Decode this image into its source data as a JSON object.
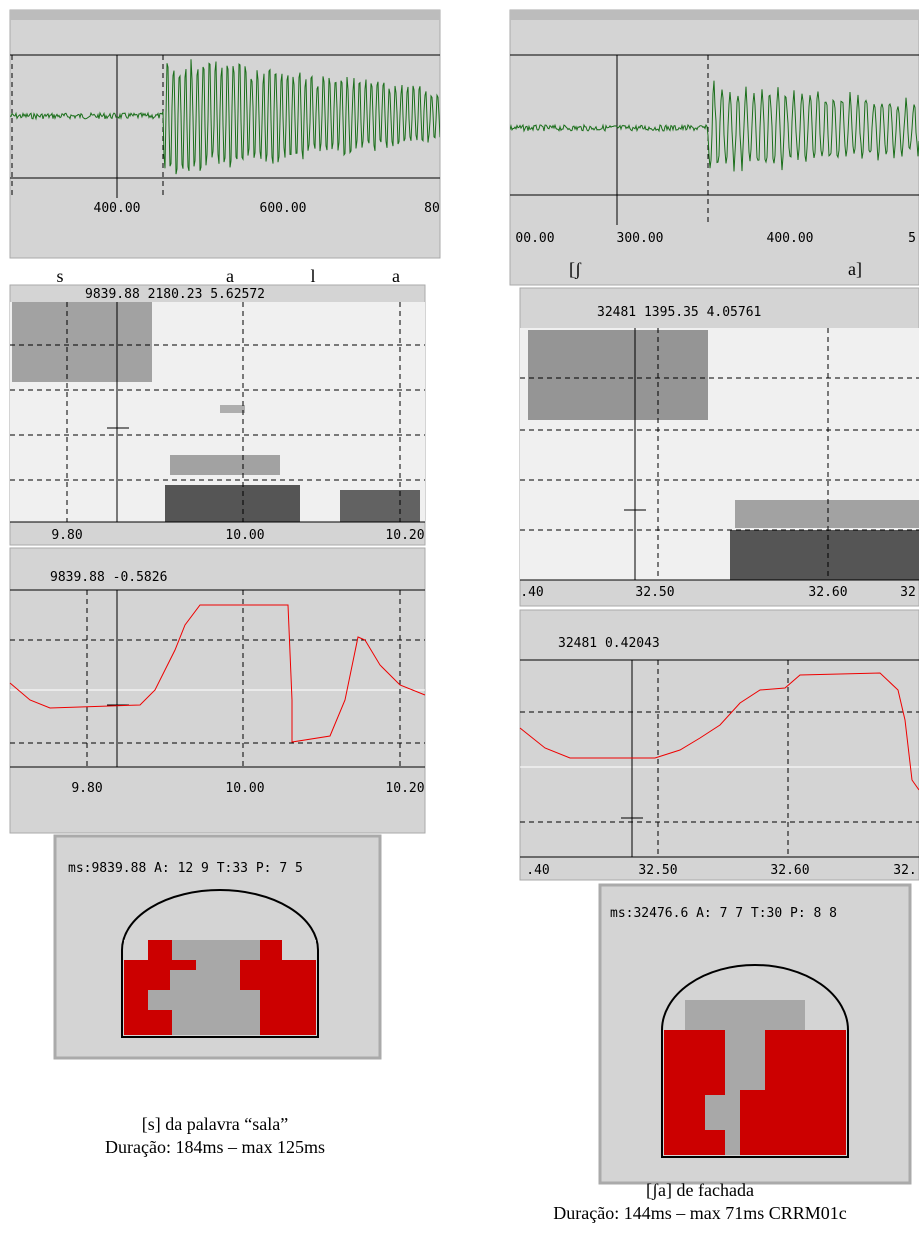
{
  "left": {
    "waveform": {
      "ticks": [
        "400.00",
        "600.00",
        "80"
      ]
    },
    "segments": [
      "s",
      "a",
      "l",
      "a"
    ],
    "spectrogram": {
      "readout": "9839.88 2180.23 5.62572",
      "ticks": [
        "9.80",
        "10.00",
        "10.20"
      ]
    },
    "pitch": {
      "readout": "9839.88  -0.5826",
      "ticks": [
        "9.80",
        "10.00",
        "10.20"
      ]
    },
    "tract": {
      "readout": "ms:9839.88 A: 12  9 T:33 P:  7  5"
    },
    "caption": [
      "[s] da palavra “sala”",
      "Duração: 184ms – max 125ms"
    ]
  },
  "right": {
    "waveform": {
      "ticks": [
        "00.00",
        "300.00",
        "400.00",
        "5"
      ]
    },
    "segments": [
      "[ʃ",
      "a]"
    ],
    "spectrogram": {
      "readout": "32481 1395.35 4.05761",
      "ticks": [
        ".40",
        "32.50",
        "32.60",
        "32"
      ]
    },
    "pitch": {
      "readout": "32481  0.42043",
      "ticks": [
        ".40",
        "32.50",
        "32.60",
        "32."
      ]
    },
    "tract": {
      "readout": "ms:32476.6 A:  7  7 T:30 P:  8  8"
    },
    "caption": [
      "[ʃa] de fachada",
      "Duração: 144ms – max 71ms CRRM01c"
    ]
  }
}
